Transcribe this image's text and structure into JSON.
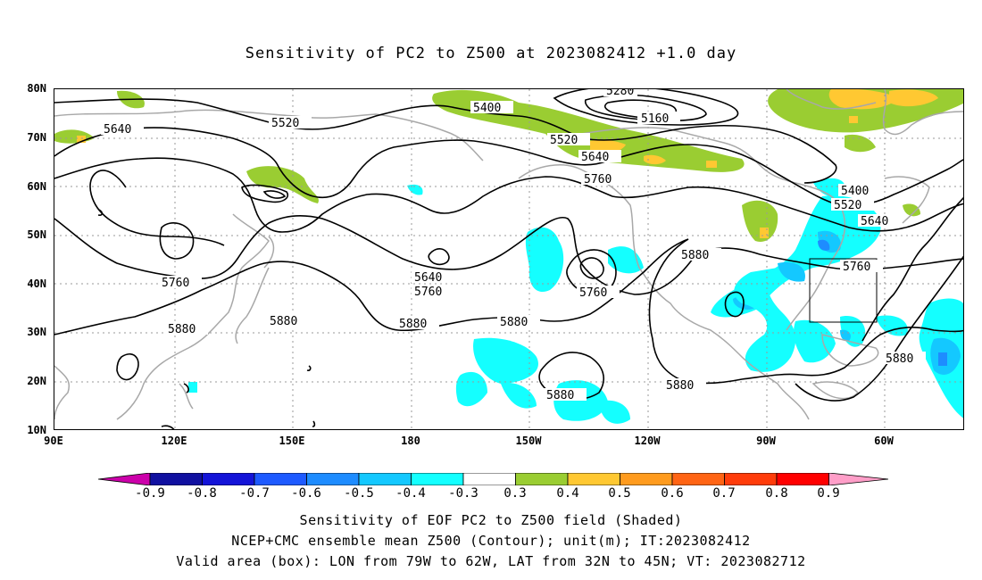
{
  "title": "Sensitivity of PC2 to Z500 at 2023082412 +1.0 day",
  "lat_labels": [
    "80N",
    "70N",
    "60N",
    "50N",
    "40N",
    "30N",
    "20N",
    "10N"
  ],
  "lon_labels": [
    "90E",
    "120E",
    "150E",
    "180",
    "150W",
    "120W",
    "90W",
    "60W"
  ],
  "contour_labels": [
    "5280",
    "5160",
    "5400",
    "5520",
    "5640",
    "5760",
    "5880",
    "5640",
    "5520",
    "5760",
    "5880",
    "5640",
    "5760",
    "5880",
    "5880",
    "5760",
    "5880",
    "5880",
    "5400",
    "5520",
    "5640",
    "5760",
    "5880",
    "5880"
  ],
  "colorbar": {
    "labels": [
      "-0.9",
      "-0.8",
      "-0.7",
      "-0.6",
      "-0.5",
      "-0.4",
      "-0.3",
      "0.3",
      "0.4",
      "0.5",
      "0.6",
      "0.7",
      "0.8",
      "0.9"
    ],
    "colors": [
      "#cc00aa",
      "#1010a0",
      "#1414d8",
      "#1e5aff",
      "#1e8cff",
      "#14c8ff",
      "#14ffff",
      "#ffffff",
      "#9acd32",
      "#ffc832",
      "#ff9b1e",
      "#ff6414",
      "#ff3c0a",
      "#ff0000",
      "#ff9ec8"
    ]
  },
  "captions": [
    "Sensitivity of EOF PC2 to Z500 field (Shaded)",
    "NCEP+CMC ensemble mean Z500 (Contour); unit(m); IT:2023082412",
    "Valid area (box): LON from 79W to 62W, LAT from 32N to 45N; VT: 2023082712"
  ]
}
